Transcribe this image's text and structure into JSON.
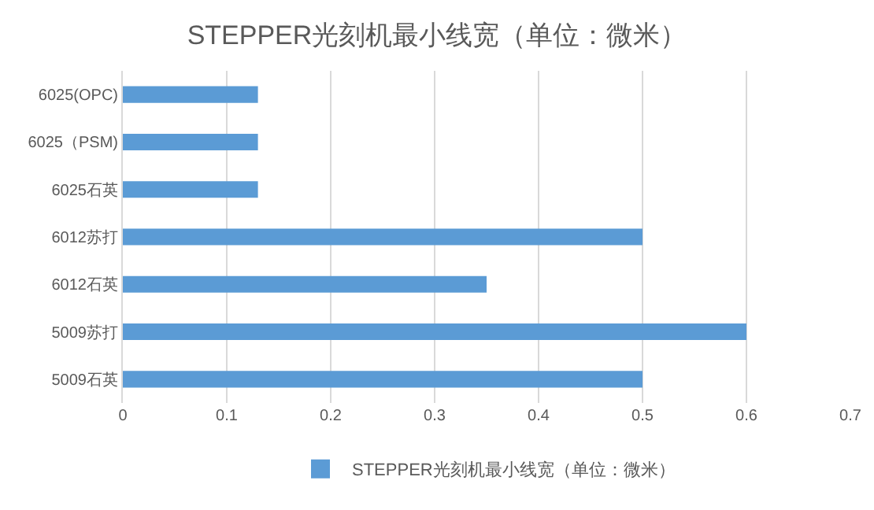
{
  "chart_data": {
    "type": "bar",
    "orientation": "horizontal",
    "title": "STEPPER光刻机最小线宽（单位：微米）",
    "categories": [
      "6025(OPC)",
      "6025（PSM)",
      "6025石英",
      "6012苏打",
      "6012石英",
      "5009苏打",
      "5009石英"
    ],
    "series": [
      {
        "name": "STEPPER光刻机最小线宽（单位：微米）",
        "color": "#5b9bd5",
        "values": [
          0.13,
          0.13,
          0.13,
          0.5,
          0.35,
          0.6,
          0.5
        ]
      }
    ],
    "xlim": [
      0,
      0.7
    ],
    "xticks": [
      0,
      0.1,
      0.2,
      0.3,
      0.4,
      0.5,
      0.6,
      0.7
    ],
    "grid": "x",
    "legend": "bottom"
  }
}
